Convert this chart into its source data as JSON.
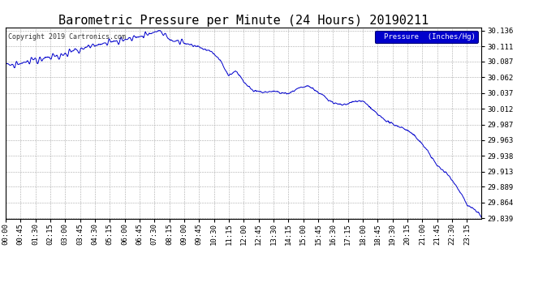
{
  "title": "Barometric Pressure per Minute (24 Hours) 20190211",
  "copyright": "Copyright 2019 Cartronics.com",
  "legend_label": "Pressure  (Inches/Hg)",
  "legend_facecolor": "#0000cc",
  "legend_textcolor": "#ffffff",
  "line_color": "#0000cc",
  "background_color": "#ffffff",
  "grid_color": "#aaaaaa",
  "ylim": [
    29.839,
    30.136
  ],
  "yticks": [
    30.136,
    30.111,
    30.087,
    30.062,
    30.037,
    30.012,
    29.987,
    29.963,
    29.938,
    29.913,
    29.889,
    29.864,
    29.839
  ],
  "title_fontsize": 11,
  "tick_fontsize": 6.5,
  "copyright_fontsize": 6.0
}
